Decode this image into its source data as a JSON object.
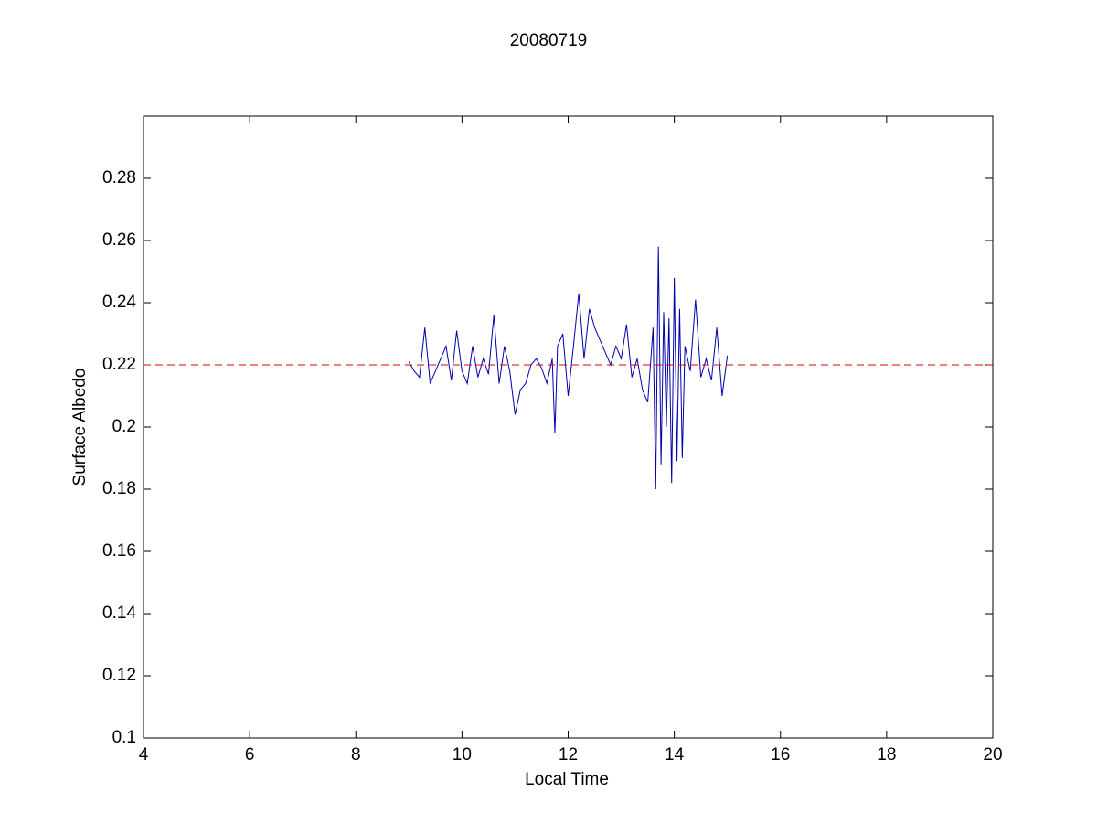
{
  "chart_data": {
    "type": "line",
    "title": "20080719",
    "x_label": "Local Time",
    "y_label": "Surface Albedo",
    "xlim": [
      4,
      20
    ],
    "xticks": [
      4,
      6,
      8,
      10,
      12,
      14,
      16,
      18,
      20
    ],
    "ylim": [
      0.1,
      0.3
    ],
    "yticks": [
      0.1,
      0.12,
      0.14,
      0.16,
      0.18,
      0.2,
      0.22,
      0.24,
      0.26,
      0.28
    ],
    "grid": false,
    "series": [
      {
        "color": "#0000aa",
        "dash": false,
        "x": [
          9.0,
          9.1,
          9.2,
          9.3,
          9.4,
          9.5,
          9.6,
          9.7,
          9.8,
          9.9,
          10.0,
          10.1,
          10.2,
          10.3,
          10.4,
          10.5,
          10.6,
          10.7,
          10.8,
          10.9,
          11.0,
          11.1,
          11.2,
          11.3,
          11.4,
          11.5,
          11.6,
          11.7,
          11.75,
          11.8,
          11.9,
          12.0,
          12.1,
          12.2,
          12.3,
          12.4,
          12.5,
          12.6,
          12.7,
          12.8,
          12.9,
          13.0,
          13.1,
          13.2,
          13.3,
          13.4,
          13.5,
          13.6,
          13.65,
          13.7,
          13.75,
          13.8,
          13.85,
          13.9,
          13.95,
          14.0,
          14.05,
          14.1,
          14.15,
          14.2,
          14.3,
          14.4,
          14.5,
          14.6,
          14.7,
          14.8,
          14.9,
          15.0
        ],
        "values": [
          0.221,
          0.218,
          0.216,
          0.232,
          0.214,
          0.218,
          0.222,
          0.226,
          0.215,
          0.231,
          0.218,
          0.214,
          0.226,
          0.216,
          0.222,
          0.217,
          0.236,
          0.214,
          0.226,
          0.218,
          0.204,
          0.212,
          0.214,
          0.22,
          0.222,
          0.219,
          0.214,
          0.222,
          0.198,
          0.226,
          0.23,
          0.21,
          0.226,
          0.243,
          0.222,
          0.238,
          0.232,
          0.228,
          0.224,
          0.22,
          0.226,
          0.222,
          0.233,
          0.216,
          0.222,
          0.212,
          0.208,
          0.232,
          0.18,
          0.258,
          0.188,
          0.237,
          0.2,
          0.235,
          0.182,
          0.248,
          0.189,
          0.238,
          0.19,
          0.226,
          0.218,
          0.241,
          0.216,
          0.222,
          0.215,
          0.232,
          0.21,
          0.223
        ]
      },
      {
        "color": "#dd0000",
        "dash": true,
        "x": [
          4,
          20
        ],
        "values": [
          0.22,
          0.22
        ]
      }
    ]
  }
}
